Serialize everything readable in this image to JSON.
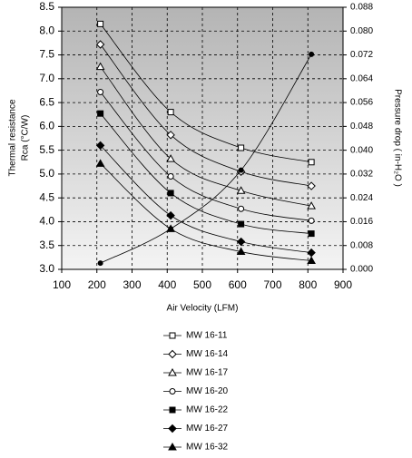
{
  "chart_data": {
    "type": "line",
    "xlabel": "Air Velocity (LFM)",
    "ylabel": [
      "Thermal resistance",
      "Rca (°C/W)"
    ],
    "y2label": "Pressure drop ( in-H₂O )",
    "x": [
      210,
      410,
      610,
      810
    ],
    "xlim": [
      100,
      900
    ],
    "xticks": [
      100,
      200,
      300,
      400,
      500,
      600,
      700,
      800,
      900
    ],
    "ylim": [
      3.0,
      8.5
    ],
    "yticks": [
      {
        "value": 3.0,
        "label": "3.0"
      },
      {
        "value": 3.5,
        "label": "3.5"
      },
      {
        "value": 4.0,
        "label": "4.0"
      },
      {
        "value": 4.5,
        "label": "4.5"
      },
      {
        "value": 5.0,
        "label": "5.0"
      },
      {
        "value": 5.5,
        "label": "5.5"
      },
      {
        "value": 6.0,
        "label": "6.0"
      },
      {
        "value": 6.5,
        "label": "6.5"
      },
      {
        "value": 7.0,
        "label": "7.0"
      },
      {
        "value": 7.5,
        "label": "7.5"
      },
      {
        "value": 8.0,
        "label": "8.0"
      },
      {
        "value": 8.5,
        "label": "8.5"
      }
    ],
    "y2lim": [
      0,
      0.088
    ],
    "y2ticks": [
      {
        "value": 0,
        "label": "0.000"
      },
      {
        "value": 0.008,
        "label": "0.008"
      },
      {
        "value": 0.016,
        "label": "0.016"
      },
      {
        "value": 0.024,
        "label": "0.024"
      },
      {
        "value": 0.032,
        "label": "0.032"
      },
      {
        "value": 0.04,
        "label": "0.040"
      },
      {
        "value": 0.048,
        "label": "0.048"
      },
      {
        "value": 0.056,
        "label": "0.056"
      },
      {
        "value": 0.064,
        "label": "0.064"
      },
      {
        "value": 0.072,
        "label": "0.072"
      },
      {
        "value": 0.08,
        "label": "0.080"
      },
      {
        "value": 0.088,
        "label": "0.088"
      }
    ],
    "grid": true,
    "series": [
      {
        "name": "MW 16-11",
        "color": "#000000",
        "marker": "square",
        "filled": false,
        "values": [
          8.15,
          6.3,
          5.55,
          5.25
        ]
      },
      {
        "name": "MW 16-14",
        "color": "#000000",
        "marker": "diamond",
        "filled": false,
        "values": [
          7.72,
          5.82,
          5.05,
          4.75
        ]
      },
      {
        "name": "MW 16-17",
        "color": "#000000",
        "marker": "triangle",
        "filled": false,
        "values": [
          7.25,
          5.32,
          4.65,
          4.33
        ]
      },
      {
        "name": "MW 16-20",
        "color": "#000000",
        "marker": "circle",
        "filled": false,
        "values": [
          6.72,
          4.95,
          4.27,
          4.02
        ]
      },
      {
        "name": "MW 16-22",
        "color": "#000000",
        "marker": "square",
        "filled": true,
        "values": [
          6.27,
          4.6,
          3.95,
          3.75
        ]
      },
      {
        "name": "MW 16-27",
        "color": "#000000",
        "marker": "diamond",
        "filled": true,
        "values": [
          5.6,
          4.13,
          3.58,
          3.35
        ]
      },
      {
        "name": "MW 16-32",
        "color": "#000000",
        "marker": "triangle",
        "filled": true,
        "values": [
          5.22,
          3.85,
          3.37,
          3.18
        ]
      },
      {
        "color": "#000000",
        "marker": "dot",
        "filled": true,
        "axis": "y2",
        "values": [
          0.0021,
          0.0136,
          0.0333,
          0.0722
        ]
      }
    ]
  }
}
